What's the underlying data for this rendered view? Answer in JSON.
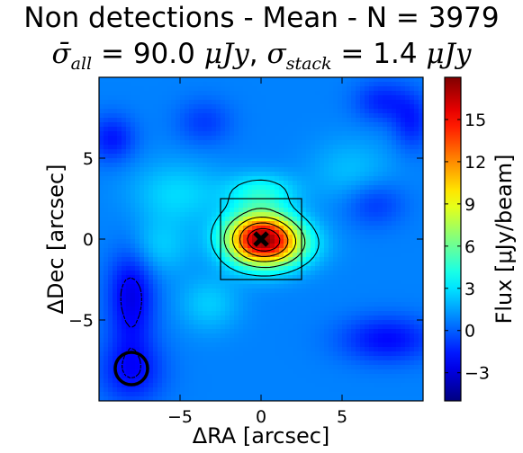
{
  "chart_data": {
    "type": "heatmap",
    "title": "Non detections - Mean - N = 3979",
    "subtitle": {
      "sigma_all_symbol": "σ̄",
      "sigma_all_sub": "all",
      "sigma_all_value": " = 90.0 ",
      "sigma_all_unit": "μJy",
      "sep": ", ",
      "sigma_stack_symbol": "σ",
      "sigma_stack_sub": "stack",
      "sigma_stack_value": " = 1.4 ",
      "sigma_stack_unit": "μJy"
    },
    "xlabel": "ΔRA [arcsec]",
    "ylabel": "ΔDec [arcsec]",
    "colorbar_label": "Flux [μJy/beam]",
    "xlim": [
      -10,
      10
    ],
    "ylim": [
      -10,
      10
    ],
    "xticks": [
      -5,
      0,
      5
    ],
    "yticks": [
      -5,
      0,
      5
    ],
    "colorbar_range": [
      -5,
      18
    ],
    "colorbar_ticks": [
      -3,
      0,
      3,
      6,
      9,
      12,
      15
    ],
    "colormap": "jet",
    "peak": {
      "x": 0,
      "y": 0,
      "value": 17.5,
      "marker": "x"
    },
    "box": {
      "x": [
        -2.5,
        2.5
      ],
      "y": [
        -2.5,
        2.5
      ]
    },
    "beam": {
      "x": -8,
      "y": -8,
      "radius_arcsec": 1
    },
    "sources": [
      {
        "x": 0.0,
        "y": 0.0,
        "sx": 1.5,
        "sy": 1.1,
        "amp": 15.5
      },
      {
        "x": 1.5,
        "y": -0.4,
        "sx": 1.6,
        "sy": 1.0,
        "amp": 3.0
      },
      {
        "x": 0.0,
        "y": 2.9,
        "sx": 1.5,
        "sy": 0.8,
        "amp": 3.2
      },
      {
        "x": -5.2,
        "y": 2.8,
        "sx": 2.0,
        "sy": 1.4,
        "amp": 2.0
      },
      {
        "x": -6.5,
        "y": -0.5,
        "sx": 1.5,
        "sy": 1.2,
        "amp": 1.8
      },
      {
        "x": -3.2,
        "y": -4.0,
        "sx": 1.3,
        "sy": 1.2,
        "amp": 1.7
      },
      {
        "x": 5.6,
        "y": 4.2,
        "sx": 1.8,
        "sy": 1.4,
        "amp": 1.4
      },
      {
        "x": -9.2,
        "y": 6.2,
        "sx": 1.0,
        "sy": 1.0,
        "amp": -2.5
      },
      {
        "x": -8.0,
        "y": -3.5,
        "sx": 1.0,
        "sy": 2.3,
        "amp": -3.5
      },
      {
        "x": -8.0,
        "y": -8.2,
        "sx": 1.4,
        "sy": 1.4,
        "amp": -2.6
      },
      {
        "x": 7.8,
        "y": -6.2,
        "sx": 2.0,
        "sy": 1.0,
        "amp": -2.8
      },
      {
        "x": 7.5,
        "y": 8.5,
        "sx": 1.2,
        "sy": 0.9,
        "amp": -2.2
      },
      {
        "x": 9.3,
        "y": 7.2,
        "sx": 0.8,
        "sy": 1.2,
        "amp": -2.2
      },
      {
        "x": 7.0,
        "y": 2.2,
        "sx": 1.3,
        "sy": 1.0,
        "amp": -1.8
      },
      {
        "x": -3.5,
        "y": 7.2,
        "sx": 1.2,
        "sy": 1.0,
        "amp": -1.6
      }
    ],
    "contours": {
      "positive_levels": [
        3,
        6,
        9,
        12,
        15
      ],
      "negative_levels": [
        -3,
        -2
      ],
      "positive_style": "solid",
      "negative_style": "dashed"
    }
  }
}
